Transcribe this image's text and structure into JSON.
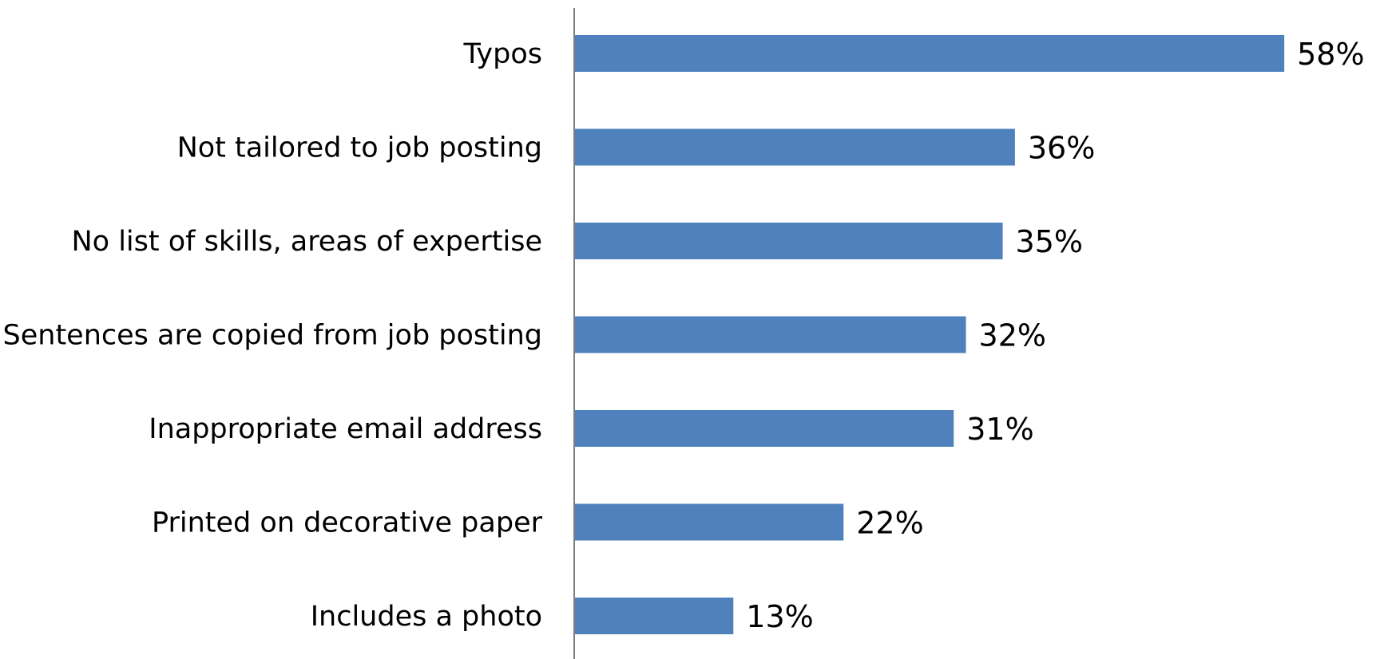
{
  "colors": {
    "bar": "#4f81bd",
    "axis": "#7f7f7f",
    "text": "#000000"
  },
  "chart_data": {
    "type": "bar",
    "orientation": "horizontal",
    "categories": [
      "Typos",
      "Not tailored to job posting",
      "No list of skills, areas of expertise",
      "Sentences are copied from job posting",
      "Inappropriate email address",
      "Printed on decorative paper",
      "Includes a photo"
    ],
    "values": [
      58,
      36,
      35,
      32,
      31,
      22,
      13
    ],
    "value_labels": [
      "58%",
      "36%",
      "35%",
      "32%",
      "31%",
      "22%",
      "13%"
    ],
    "xlim": [
      0,
      60
    ],
    "grid": false,
    "legend": "none"
  }
}
